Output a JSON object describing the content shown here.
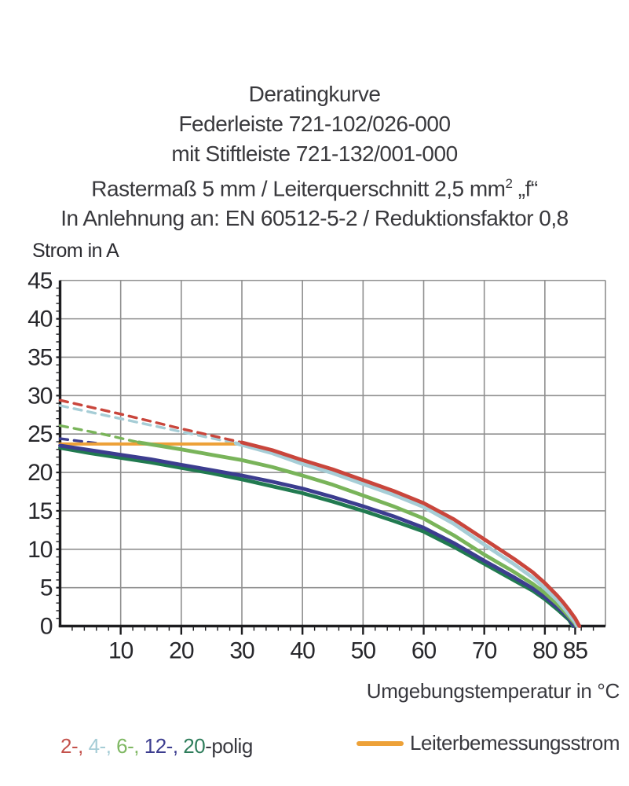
{
  "title": {
    "line1": "Deratingkurve",
    "line2": "Federleiste 721-102/026-000",
    "line3": "mit Stiftleiste 721-132/001-000",
    "line4_pre": "Rastermaß 5 mm / Leiterquerschnitt 2,5 mm",
    "line4_sup": "2",
    "line4_post": " „f“",
    "line5": "In Anlehnung an: EN 60512-5-2 / Reduktionsfaktor 0,8"
  },
  "axis": {
    "y_title": "Strom in A",
    "x_title": "Umgebungstemperatur in °C"
  },
  "legend": {
    "pole_items": [
      {
        "label": "2-, ",
        "color": "#c4524c"
      },
      {
        "label": "4-, ",
        "color": "#a6cdd6"
      },
      {
        "label": "6-, ",
        "color": "#7fb863"
      },
      {
        "label": "12-, ",
        "color": "#3c3d8f"
      },
      {
        "label": "20",
        "color": "#2e7d5b"
      },
      {
        "label": "-polig",
        "color": "#38383e"
      }
    ],
    "reference_label": "Leiterbemessungsstrom"
  },
  "chart_data": {
    "type": "line",
    "title": "Deratingkurve",
    "xlabel": "Umgebungstemperatur in °C",
    "ylabel": "Strom in A",
    "xlim": [
      0,
      90
    ],
    "ylim": [
      0,
      45
    ],
    "grid": true,
    "x_major_ticks": [
      10,
      20,
      30,
      40,
      50,
      60,
      70,
      80,
      85
    ],
    "x_grid_lines": [
      10,
      20,
      30,
      40,
      50,
      60,
      70,
      80,
      90
    ],
    "y_major_ticks": [
      0,
      5,
      10,
      15,
      20,
      25,
      30,
      35,
      40,
      45
    ],
    "x_minor_step": 2,
    "y_minor_step": 1,
    "grid_color": "#8f8f8f",
    "axis_color": "#1c1c1f",
    "tick_label_color": "#27272b",
    "reference_line": {
      "label": "Leiterbemessungsstrom",
      "y": 23.7,
      "x_start": 0,
      "x_end": 30,
      "color": "#eda138"
    },
    "series": [
      {
        "name": "20-polig",
        "color": "#217a50",
        "dashed": [],
        "solid": [
          [
            0,
            23.2
          ],
          [
            5,
            22.5
          ],
          [
            10,
            21.9
          ],
          [
            15,
            21.3
          ],
          [
            20,
            20.6
          ],
          [
            25,
            19.9
          ],
          [
            30,
            19.1
          ],
          [
            35,
            18.2
          ],
          [
            40,
            17.3
          ],
          [
            45,
            16.2
          ],
          [
            50,
            15.0
          ],
          [
            55,
            13.7
          ],
          [
            60,
            12.3
          ],
          [
            65,
            10.3
          ],
          [
            70,
            8.1
          ],
          [
            75,
            5.9
          ],
          [
            78,
            4.6
          ],
          [
            80,
            3.5
          ],
          [
            82,
            2.2
          ],
          [
            83,
            1.5
          ],
          [
            84,
            0.8
          ],
          [
            84.6,
            0
          ]
        ]
      },
      {
        "name": "12-polig",
        "color": "#3c3d8f",
        "dashed": [
          [
            0,
            24.4
          ],
          [
            3,
            24.1
          ],
          [
            6,
            23.8
          ]
        ],
        "solid": [
          [
            0,
            23.5
          ],
          [
            5,
            22.9
          ],
          [
            10,
            22.3
          ],
          [
            15,
            21.7
          ],
          [
            20,
            21.0
          ],
          [
            25,
            20.3
          ],
          [
            30,
            19.6
          ],
          [
            35,
            18.8
          ],
          [
            40,
            17.9
          ],
          [
            45,
            16.8
          ],
          [
            50,
            15.6
          ],
          [
            55,
            14.3
          ],
          [
            60,
            12.8
          ],
          [
            65,
            10.8
          ],
          [
            70,
            8.5
          ],
          [
            75,
            6.3
          ],
          [
            78,
            4.9
          ],
          [
            80,
            3.8
          ],
          [
            82,
            2.5
          ],
          [
            83,
            1.8
          ],
          [
            84,
            1.0
          ],
          [
            84.8,
            0
          ]
        ]
      },
      {
        "name": "6-polig",
        "color": "#79b45a",
        "dashed": [
          [
            0,
            26.1
          ],
          [
            7,
            25.0
          ],
          [
            13,
            23.9
          ]
        ],
        "solid": [
          [
            13,
            23.9
          ],
          [
            20,
            23.0
          ],
          [
            25,
            22.3
          ],
          [
            30,
            21.6
          ],
          [
            35,
            20.7
          ],
          [
            40,
            19.6
          ],
          [
            45,
            18.4
          ],
          [
            50,
            17.0
          ],
          [
            55,
            15.6
          ],
          [
            60,
            14.0
          ],
          [
            65,
            11.8
          ],
          [
            70,
            9.3
          ],
          [
            75,
            7.0
          ],
          [
            78,
            5.5
          ],
          [
            80,
            4.3
          ],
          [
            82,
            2.9
          ],
          [
            83,
            2.1
          ],
          [
            84,
            1.2
          ],
          [
            85,
            0.3
          ],
          [
            85.2,
            0
          ]
        ]
      },
      {
        "name": "4-polig",
        "color": "#a6cdd6",
        "dashed": [
          [
            0,
            28.7
          ],
          [
            10,
            27.0
          ],
          [
            20,
            25.3
          ],
          [
            29,
            23.8
          ]
        ],
        "solid": [
          [
            29,
            23.8
          ],
          [
            35,
            22.5
          ],
          [
            40,
            21.1
          ],
          [
            45,
            19.9
          ],
          [
            50,
            18.5
          ],
          [
            55,
            17.1
          ],
          [
            60,
            15.5
          ],
          [
            65,
            13.3
          ],
          [
            70,
            10.6
          ],
          [
            75,
            8.0
          ],
          [
            78,
            6.3
          ],
          [
            80,
            4.9
          ],
          [
            82,
            3.4
          ],
          [
            83,
            2.5
          ],
          [
            84,
            1.5
          ],
          [
            85,
            0.5
          ],
          [
            85.3,
            0
          ]
        ]
      },
      {
        "name": "2-polig",
        "color": "#c9463c",
        "dashed": [
          [
            0,
            29.4
          ],
          [
            10,
            27.6
          ],
          [
            20,
            25.7
          ],
          [
            30,
            23.9
          ]
        ],
        "solid": [
          [
            30,
            23.9
          ],
          [
            35,
            22.9
          ],
          [
            40,
            21.6
          ],
          [
            45,
            20.4
          ],
          [
            50,
            19.0
          ],
          [
            55,
            17.6
          ],
          [
            60,
            16.0
          ],
          [
            65,
            13.9
          ],
          [
            70,
            11.3
          ],
          [
            75,
            8.7
          ],
          [
            78,
            7.0
          ],
          [
            80,
            5.6
          ],
          [
            82,
            4.0
          ],
          [
            83,
            3.1
          ],
          [
            84,
            2.1
          ],
          [
            85,
            1.0
          ],
          [
            85.7,
            0
          ]
        ]
      }
    ]
  }
}
